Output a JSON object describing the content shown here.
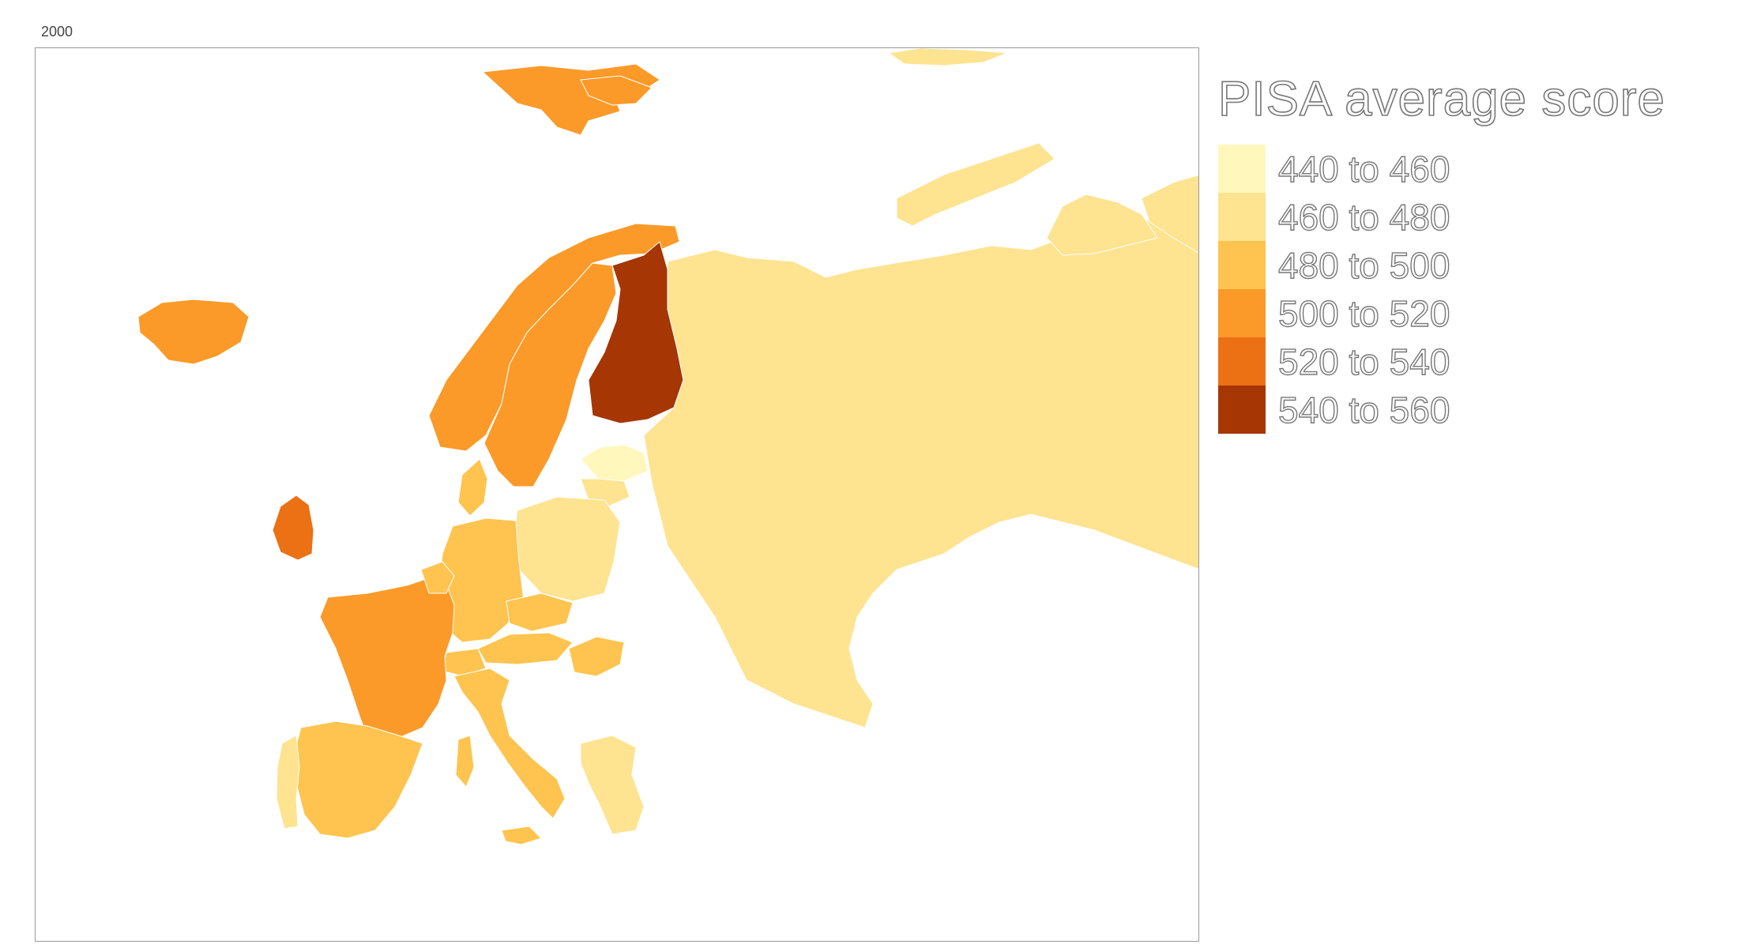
{
  "year_label": "2000",
  "legend": {
    "title": "PISA average score",
    "bins": [
      {
        "label": "440 to 460",
        "color": "#fff7bc"
      },
      {
        "label": "460 to 480",
        "color": "#fee391"
      },
      {
        "label": "480 to 500",
        "color": "#fec44f"
      },
      {
        "label": "500 to 520",
        "color": "#fb9a29"
      },
      {
        "label": "520 to 540",
        "color": "#ec7014"
      },
      {
        "label": "540 to 560",
        "color": "#cc4c02"
      }
    ]
  },
  "map": {
    "title": "2000",
    "colors": {
      "b440": "#fff7bc",
      "b460": "#fee391",
      "b480": "#fec44f",
      "b500": "#fb9a29",
      "b520": "#ec7014",
      "b540": "#cc4c02",
      "b540_dark": "#a63603"
    }
  }
}
